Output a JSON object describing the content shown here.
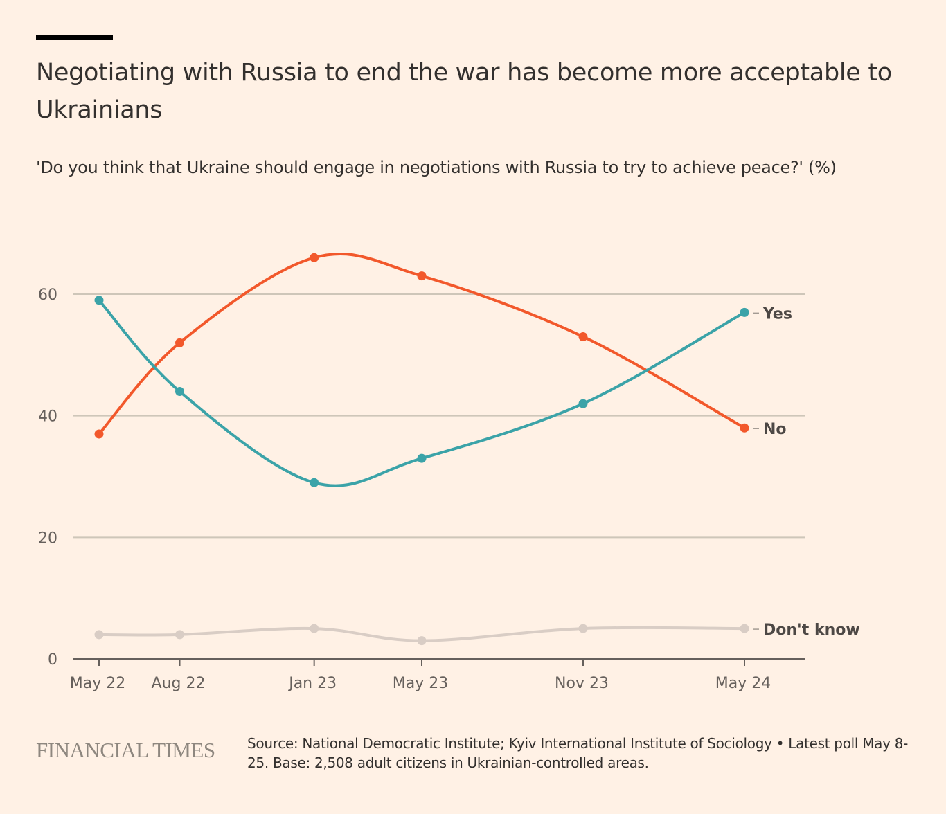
{
  "title": "Negotiating with Russia to end the war has become more acceptable to Ukrainians",
  "subtitle": "'Do you think that Ukraine should engage in negotiations with Russia to try to achieve peace?' (%)",
  "footer": {
    "logo": "FINANCIAL TIMES",
    "source": "Source: National Democratic Institute; Kyiv International Institute of Sociology • Latest poll May 8-25. Base: 2,508 adult citizens in Ukrainian-controlled areas."
  },
  "chart_data": {
    "type": "line",
    "title": "Negotiating with Russia to end the war has become more acceptable to Ukrainians",
    "categories": [
      "May 22",
      "Aug 22",
      "Jan 23",
      "May 23",
      "Nov 23",
      "May 24"
    ],
    "x_months": [
      0,
      3,
      8,
      12,
      18,
      24
    ],
    "ylabel": "%",
    "ylim": [
      0,
      60
    ],
    "yticks": [
      0,
      20,
      40,
      60
    ],
    "grid": true,
    "legend": "direct labels at line ends",
    "series": [
      {
        "name": "Yes",
        "color": "#3ba3a8",
        "values": [
          59,
          44,
          29,
          33,
          42,
          57
        ]
      },
      {
        "name": "No",
        "color": "#f2582b",
        "values": [
          37,
          52,
          66,
          63,
          53,
          38
        ]
      },
      {
        "name": "Don't know",
        "color": "#d9cdc5",
        "values": [
          4,
          4,
          5,
          3,
          5,
          5
        ]
      }
    ]
  }
}
